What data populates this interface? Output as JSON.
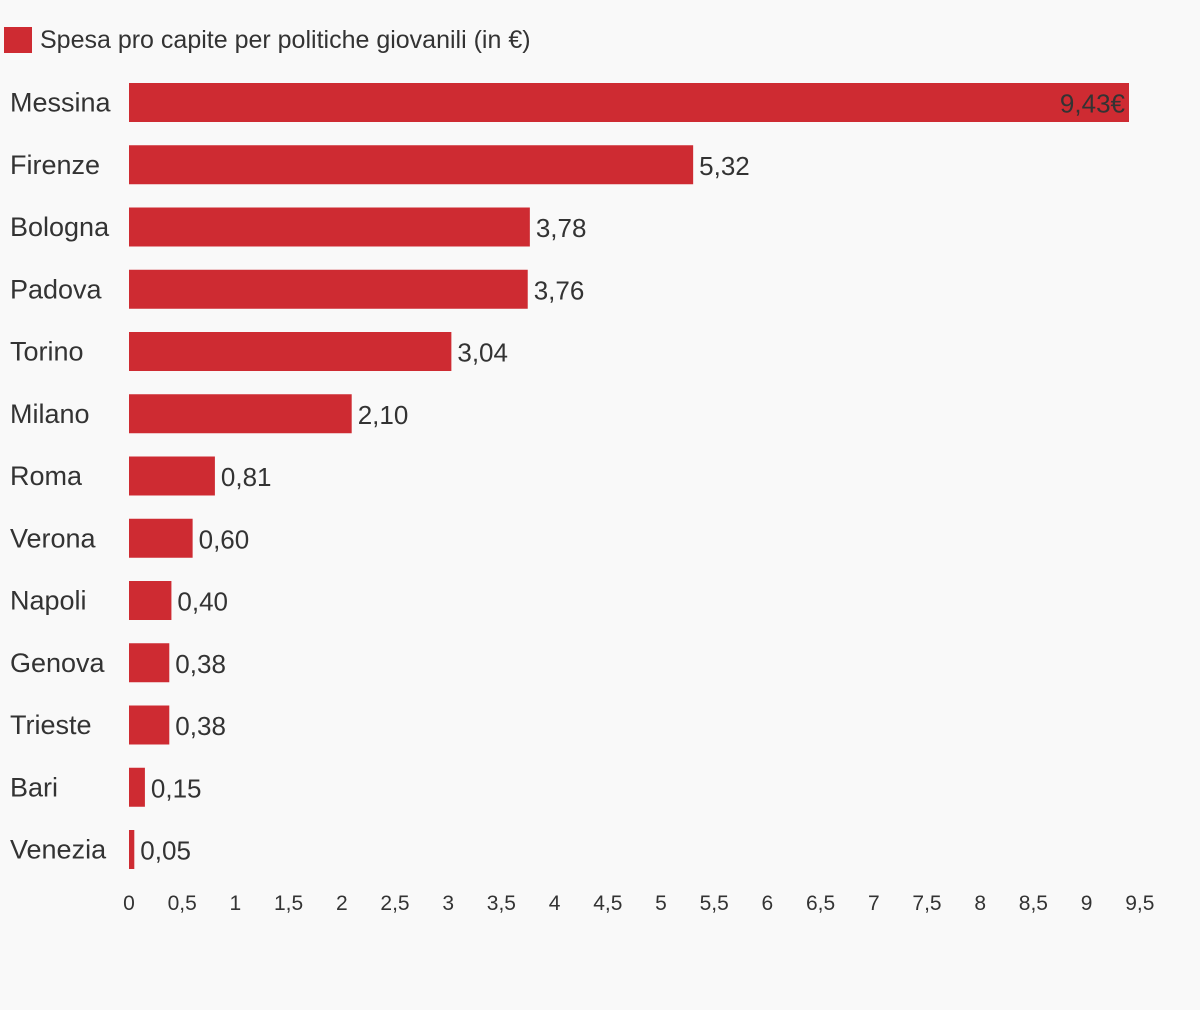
{
  "chart_data": {
    "type": "bar",
    "orientation": "horizontal",
    "categories": [
      "Messina",
      "Firenze",
      "Bologna",
      "Padova",
      "Torino",
      "Milano",
      "Roma",
      "Verona",
      "Napoli",
      "Genova",
      "Trieste",
      "Bari",
      "Venezia"
    ],
    "series": [
      {
        "name": "Spesa pro capite per politiche giovanili (in €)",
        "color": "#ce2b32",
        "values": [
          9.43,
          5.32,
          3.78,
          3.76,
          3.04,
          2.1,
          0.81,
          0.6,
          0.4,
          0.38,
          0.38,
          0.15,
          0.05
        ]
      }
    ],
    "data_labels": [
      "9,43€",
      "5,32",
      "3,78",
      "3,76",
      "3,04",
      "2,10",
      "0,81",
      "0,60",
      "0,40",
      "0,38",
      "0,38",
      "0,15",
      "0,05"
    ],
    "x_ticks": [
      "0",
      "0,5",
      "1",
      "1,5",
      "2",
      "2,5",
      "3",
      "3,5",
      "4",
      "4,5",
      "5",
      "5,5",
      "6",
      "6,5",
      "7",
      "7,5",
      "8",
      "8,5",
      "9",
      "9,5"
    ],
    "xlim": [
      0,
      9.5
    ],
    "xlabel": "",
    "ylabel": "",
    "grid": false,
    "legend_position": "top-left"
  }
}
